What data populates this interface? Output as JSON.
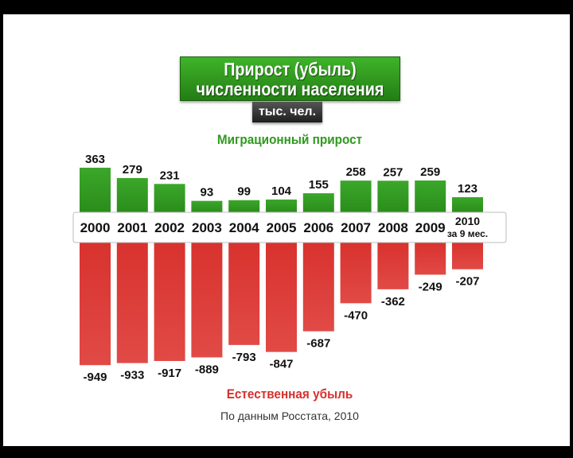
{
  "title": {
    "line1": "Прирост (убыль)",
    "line2": "численности населения",
    "unit": "тыс. чел."
  },
  "chart_data": {
    "type": "bar",
    "title": "Прирост (убыль) численности населения",
    "categories": [
      "2000",
      "2001",
      "2002",
      "2003",
      "2004",
      "2005",
      "2006",
      "2007",
      "2008",
      "2009",
      "2010"
    ],
    "last_category_note": "за 9 мес.",
    "series": [
      {
        "name": "Миграционный прирост",
        "color": "#2f9a1e",
        "values": [
          363,
          279,
          231,
          93,
          99,
          104,
          155,
          258,
          257,
          259,
          123
        ]
      },
      {
        "name": "Естественная убыль",
        "color": "#d7312d",
        "values": [
          -949,
          -933,
          -917,
          -889,
          -793,
          -847,
          -687,
          -470,
          -362,
          -249,
          -207
        ]
      }
    ],
    "grid": false
  },
  "source": "По данным Росстата, 2010"
}
